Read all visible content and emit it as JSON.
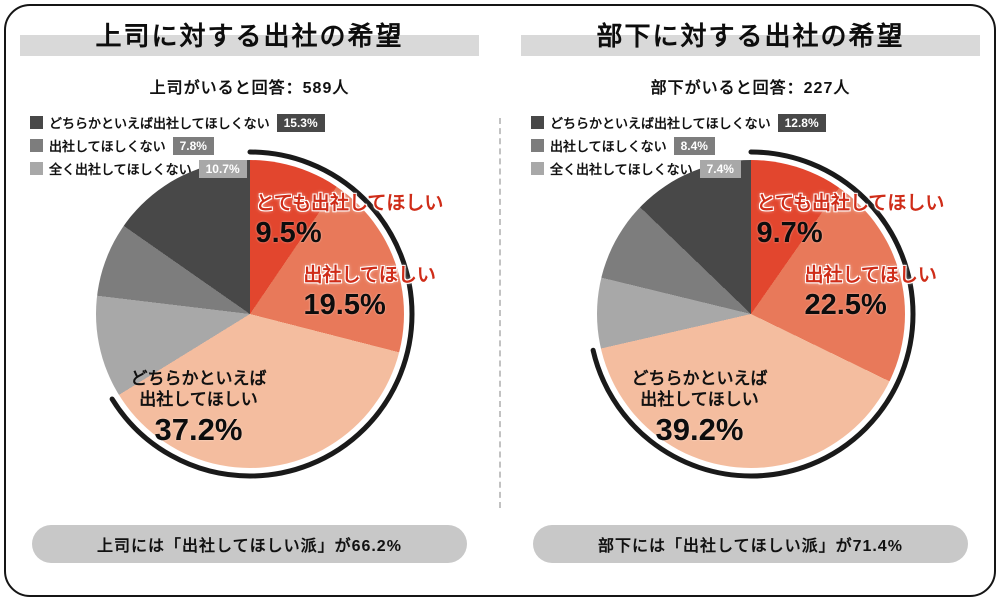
{
  "page": {
    "background": "#ffffff",
    "frame_border_color": "#151515",
    "title_band_color": "#d9d9d9",
    "summary_pill_color": "#c8c8c8",
    "divider_style": "dashed"
  },
  "chart_data": [
    {
      "type": "pie",
      "title": "上司に対する出社の希望",
      "subtitle": "上司がいると回答：589人",
      "respondents": 589,
      "unit": "%",
      "direction": "clockwise",
      "start_angle_deg": 0,
      "slices": [
        {
          "label": "とても出社してほしい",
          "value": 9.5,
          "color": "#e2462e"
        },
        {
          "label": "出社してほしい",
          "value": 19.5,
          "color": "#e8795a"
        },
        {
          "label": "どちらかといえば出社してほしい",
          "value": 37.2,
          "color": "#f4bd9f",
          "label_lines": [
            "どちらかといえば",
            "出社してほしい"
          ]
        },
        {
          "label": "全く出社してほしくない",
          "value": 10.7,
          "color": "#a8a8a8"
        },
        {
          "label": "出社してほしくない",
          "value": 7.8,
          "color": "#7d7d7d"
        },
        {
          "label": "どちらかといえば出社してほしくない",
          "value": 15.3,
          "color": "#484848"
        }
      ],
      "legend_slice_indices": [
        5,
        4,
        3
      ],
      "highlight_arc": {
        "covers_pct": 66.2,
        "color": "#1a1a1a"
      },
      "summary": "上司には「出社してほしい派」が66.2%"
    },
    {
      "type": "pie",
      "title": "部下に対する出社の希望",
      "subtitle": "部下がいると回答：227人",
      "respondents": 227,
      "unit": "%",
      "direction": "clockwise",
      "start_angle_deg": 0,
      "slices": [
        {
          "label": "とても出社してほしい",
          "value": 9.7,
          "color": "#e2462e"
        },
        {
          "label": "出社してほしい",
          "value": 22.5,
          "color": "#e8795a"
        },
        {
          "label": "どちらかといえば出社してほしい",
          "value": 39.2,
          "color": "#f4bd9f",
          "label_lines": [
            "どちらかといえば",
            "出社してほしい"
          ]
        },
        {
          "label": "全く出社してほしくない",
          "value": 7.4,
          "color": "#a8a8a8"
        },
        {
          "label": "出社してほしくない",
          "value": 8.4,
          "color": "#7d7d7d"
        },
        {
          "label": "どちらかといえば出社してほしくない",
          "value": 12.8,
          "color": "#484848"
        }
      ],
      "legend_slice_indices": [
        5,
        4,
        3
      ],
      "highlight_arc": {
        "covers_pct": 71.4,
        "color": "#1a1a1a"
      },
      "summary": "部下には「出社してほしい派」が71.4%"
    }
  ]
}
